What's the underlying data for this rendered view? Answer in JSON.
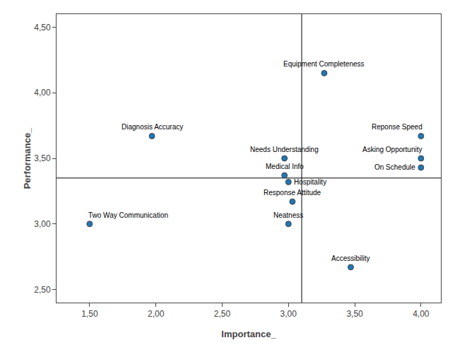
{
  "chart_data": {
    "type": "scatter",
    "xlabel": "Importance_",
    "ylabel": "Performance_",
    "point_labels": [
      "Equipment Completeness",
      "Diagnosis Accuracy",
      "Needs Understanding",
      "Medical Info",
      "Hospitality",
      "Response Attitude",
      "Neatness",
      "Two Way Communication",
      "Accessibility",
      "Reponse Speed",
      "Asking Opportunity",
      "On Schedule"
    ],
    "x": [
      3.27,
      1.97,
      2.97,
      2.97,
      3.0,
      3.03,
      3.0,
      1.5,
      3.47,
      4.0,
      4.0,
      4.0
    ],
    "values": [
      4.15,
      3.67,
      3.5,
      3.37,
      3.32,
      3.17,
      3.0,
      3.0,
      2.67,
      3.67,
      3.5,
      3.43
    ],
    "mean_x": 3.1,
    "mean_y": 3.35,
    "xlim": [
      1.25,
      4.15
    ],
    "ylim": [
      2.4,
      4.6
    ],
    "xticks": [
      {
        "value": 1.5,
        "label": "1,50"
      },
      {
        "value": 2.0,
        "label": "2,00"
      },
      {
        "value": 2.5,
        "label": "2,50"
      },
      {
        "value": 3.0,
        "label": "3,00"
      },
      {
        "value": 3.5,
        "label": "3,50"
      },
      {
        "value": 4.0,
        "label": "4,00"
      }
    ],
    "yticks": [
      {
        "value": 2.5,
        "label": "2,50"
      },
      {
        "value": 3.0,
        "label": "3,00"
      },
      {
        "value": 3.5,
        "label": "3,50"
      },
      {
        "value": 4.0,
        "label": "4,00"
      },
      {
        "value": 4.5,
        "label": "4,50"
      }
    ],
    "grid": false
  }
}
